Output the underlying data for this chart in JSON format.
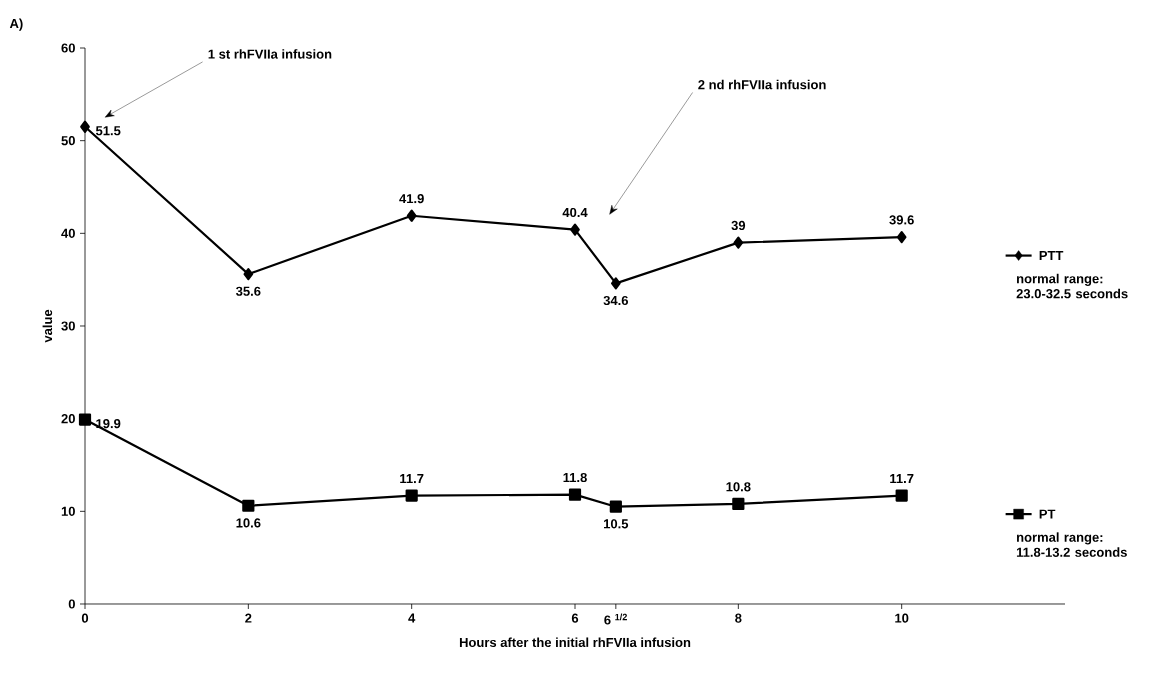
{
  "chart_data": {
    "type": "line",
    "title": "A)",
    "xlabel": "Hours after the initial rhFVIIa infusion",
    "ylabel": "value",
    "x": [
      0,
      2,
      4,
      6,
      6.5,
      8,
      10
    ],
    "series": [
      {
        "name": "PTT",
        "color": "#000000",
        "marker": "diamond",
        "values": [
          51.5,
          35.6,
          41.9,
          40.4,
          34.6,
          39,
          39.6
        ]
      },
      {
        "name": "PT",
        "color": "#000000",
        "marker": "square",
        "values": [
          19.9,
          10.6,
          11.7,
          11.8,
          10.5,
          10.8,
          11.7
        ]
      }
    ],
    "xlim": [
      0,
      12
    ],
    "ylim": [
      0,
      60
    ],
    "xticks": [
      0,
      2,
      4,
      6,
      {
        "value": 6.5,
        "label": "6 $^{1/2}$"
      },
      8,
      10
    ],
    "yticks": [
      0,
      10,
      20,
      30,
      40,
      50,
      60
    ],
    "data_labels": true,
    "grid": false,
    "legend": "right",
    "line_style": "solid",
    "annotations": [
      "1 st rhFVIIa infusion",
      "2 nd rhFVIIa infusion",
      "normal range: 23.0-32.5 seconds",
      "normal range: 11.8-13.2 seconds"
    ]
  }
}
